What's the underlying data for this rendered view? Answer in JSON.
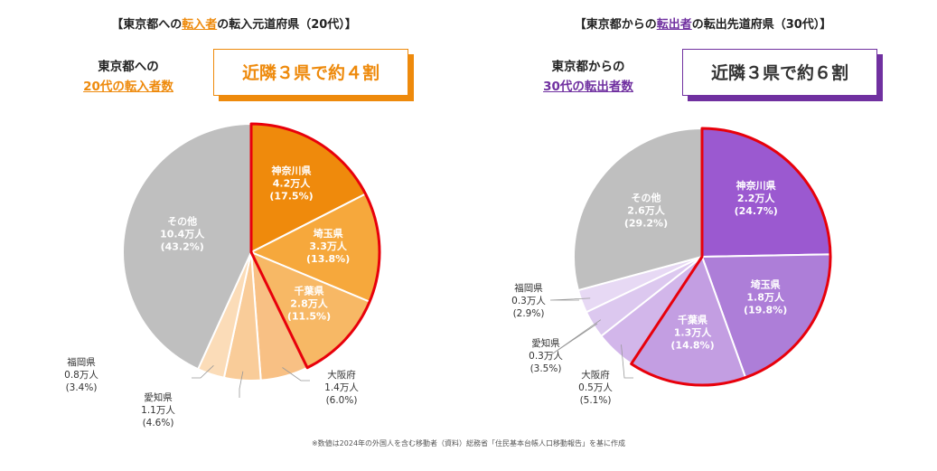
{
  "footnote": "※数値は2024年の外国人を含む移動者（資料）総務省「住民基本台帳人口移動報告」を基に作成",
  "chart_data": [
    {
      "type": "pie",
      "title_parts": [
        "【東京都への",
        "転入者",
        "の転入元道府県（20代）】"
      ],
      "subtitle_line1": "東京都への",
      "subtitle_line2": "20代の転入者数",
      "callout": "近隣３県で約４割",
      "accent": "#ee8a0c",
      "highlight_border": "#e8000b",
      "unit": "万人",
      "slices": [
        {
          "name": "神奈川県",
          "value": 4.2,
          "value_label": "4.2万人",
          "percent": 17.5,
          "percent_label": "(17.5%)",
          "color": "#ef8a0c",
          "text_color": "#ffffff",
          "highlight": true
        },
        {
          "name": "埼玉県",
          "value": 3.3,
          "value_label": "3.3万人",
          "percent": 13.8,
          "percent_label": "(13.8%)",
          "color": "#f6a83c",
          "text_color": "#ffffff",
          "highlight": true
        },
        {
          "name": "千葉県",
          "value": 2.8,
          "value_label": "2.8万人",
          "percent": 11.5,
          "percent_label": "(11.5%)",
          "color": "#f7b865",
          "text_color": "#ffffff",
          "highlight": true
        },
        {
          "name": "大阪府",
          "value": 1.4,
          "value_label": "1.4万人",
          "percent": 6.0,
          "percent_label": "(6.0%)",
          "color": "#f8c084",
          "text_color": "#333333",
          "highlight": false
        },
        {
          "name": "愛知県",
          "value": 1.1,
          "value_label": "1.1万人",
          "percent": 4.6,
          "percent_label": "(4.6%)",
          "color": "#f9cc99",
          "text_color": "#333333",
          "highlight": false
        },
        {
          "name": "福岡県",
          "value": 0.8,
          "value_label": "0.8万人",
          "percent": 3.4,
          "percent_label": "(3.4%)",
          "color": "#fbdcb8",
          "text_color": "#333333",
          "highlight": false
        },
        {
          "name": "その他",
          "value": 10.4,
          "value_label": "10.4万人",
          "percent": 43.2,
          "percent_label": "(43.2%)",
          "color": "#bfbfbf",
          "text_color": "#ffffff",
          "highlight": false
        }
      ]
    },
    {
      "type": "pie",
      "title_parts": [
        "【東京都からの",
        "転出者",
        "の転出先道府県（30代）】"
      ],
      "subtitle_line1": "東京都からの",
      "subtitle_line2": "30代の転出者数",
      "callout": "近隣３県で約６割",
      "accent": "#7030a0",
      "highlight_border": "#e8000b",
      "unit": "万人",
      "slices": [
        {
          "name": "神奈川県",
          "value": 2.2,
          "value_label": "2.2万人",
          "percent": 24.7,
          "percent_label": "(24.7%)",
          "color": "#9b59d0",
          "text_color": "#ffffff",
          "highlight": true
        },
        {
          "name": "埼玉県",
          "value": 1.8,
          "value_label": "1.8万人",
          "percent": 19.8,
          "percent_label": "(19.8%)",
          "color": "#ad7ed8",
          "text_color": "#ffffff",
          "highlight": true
        },
        {
          "name": "千葉県",
          "value": 1.3,
          "value_label": "1.3万人",
          "percent": 14.8,
          "percent_label": "(14.8%)",
          "color": "#c39ee2",
          "text_color": "#ffffff",
          "highlight": true
        },
        {
          "name": "大阪府",
          "value": 0.5,
          "value_label": "0.5万人",
          "percent": 5.1,
          "percent_label": "(5.1%)",
          "color": "#d2b6ea",
          "text_color": "#333333",
          "highlight": false
        },
        {
          "name": "愛知県",
          "value": 0.3,
          "value_label": "0.3万人",
          "percent": 3.5,
          "percent_label": "(3.5%)",
          "color": "#dcc8ef",
          "text_color": "#333333",
          "highlight": false
        },
        {
          "name": "福岡県",
          "value": 0.3,
          "value_label": "0.3万人",
          "percent": 2.9,
          "percent_label": "(2.9%)",
          "color": "#e7d9f4",
          "text_color": "#333333",
          "highlight": false
        },
        {
          "name": "その他",
          "value": 2.6,
          "value_label": "2.6万人",
          "percent": 29.2,
          "percent_label": "(29.2%)",
          "color": "#bfbfbf",
          "text_color": "#ffffff",
          "highlight": false
        }
      ]
    }
  ]
}
